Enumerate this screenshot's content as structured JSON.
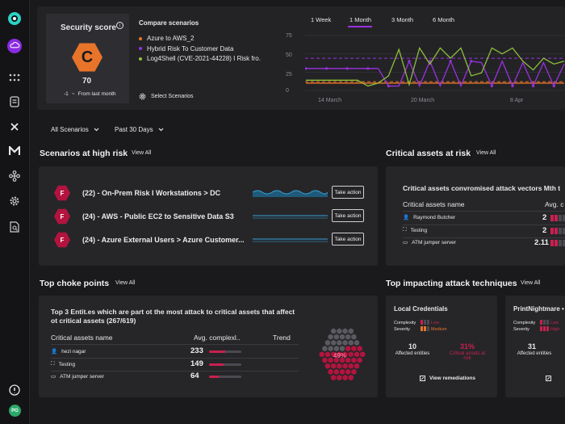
{
  "sidebar": {
    "icons": [
      "app-logo-icon",
      "cloud-icon",
      "grid-icon",
      "report-icon",
      "cross-icon",
      "m-logo-icon",
      "network-icon",
      "gear-icon",
      "doc-search-icon",
      "help-icon"
    ],
    "avatar": "PG"
  },
  "score": {
    "title": "Security score",
    "info": "i",
    "grade": "C",
    "value": "70",
    "delta": "-1",
    "delta_text": "From last month"
  },
  "compare": {
    "title": "Compare scenarios",
    "items": [
      {
        "label": "Azure to AWS_2",
        "color": "#e8742a"
      },
      {
        "label": "Hybrid Risk To Customer Data",
        "color": "#9a30e0"
      },
      {
        "label": "Log4Shell (CVE-2021-44228) I Risk fro.",
        "color": "#8fbf3a"
      }
    ],
    "select_label": "Select Scenarios"
  },
  "timerange": {
    "tabs": [
      "1 Week",
      "1 Month",
      "3 Month",
      "6 Month"
    ],
    "active": "1 Month"
  },
  "chart_data": {
    "type": "line",
    "yticks": [
      "75",
      "50",
      "25",
      "0"
    ],
    "ylim": [
      0,
      75
    ],
    "xticks": [
      "14 March",
      "20 March",
      "8 Apr"
    ],
    "series": [
      {
        "name": "Azure to AWS_2",
        "color": "#e8742a",
        "values": [
          10,
          10,
          10,
          10,
          10,
          10,
          10,
          10,
          10,
          10,
          10,
          10,
          10,
          10,
          10,
          10,
          10,
          10,
          10,
          10,
          10,
          10,
          10,
          10,
          10,
          10
        ]
      },
      {
        "name": "Hybrid Risk To Customer Data",
        "color": "#9a30e0",
        "values": [
          30,
          30,
          30,
          30,
          30,
          30,
          30,
          30,
          6,
          6,
          40,
          6,
          40,
          6,
          40,
          6,
          40,
          38,
          6,
          40,
          6,
          38,
          6,
          38,
          6,
          36
        ]
      },
      {
        "name": "Log4Shell (CVE-2021-44228) I Risk fro.",
        "color": "#8fbf3a",
        "values": [
          14,
          14,
          14,
          14,
          14,
          14,
          6,
          10,
          20,
          56,
          8,
          58,
          36,
          58,
          44,
          58,
          20,
          24,
          58,
          50,
          58,
          40,
          28,
          44,
          36,
          40
        ]
      }
    ],
    "reference_lines": [
      {
        "value": 44,
        "color": "#9a30e0"
      },
      {
        "value": 12,
        "color": "#e8742a"
      }
    ]
  },
  "filters": {
    "scenarios": "All Scenarios",
    "period": "Past 30 Days"
  },
  "high_risk": {
    "title": "Scenarios at high risk",
    "view_all": "View All",
    "rows": [
      {
        "badge": "F",
        "label": "(22) - On-Prem Risk I Workstations > DC",
        "action": "Take action"
      },
      {
        "badge": "F",
        "label": "(24) - AWS - Public EC2 to Sensitive Data S3",
        "action": "Take action"
      },
      {
        "badge": "F",
        "label": "(24) - Azure External Users > Azure Customer...",
        "action": "Take action"
      }
    ]
  },
  "critical_assets": {
    "title": "Critical assets at risk",
    "view_all": "View All",
    "subtitle": "Critical assets convromised attack vectors Mth t",
    "col_name": "Critical assets name",
    "col_avg": "Avg. c",
    "rows": [
      {
        "icon": "user-icon",
        "name": "Raymond Butcher",
        "value": "2",
        "segs": 4
      },
      {
        "icon": "server-icon",
        "name": "Testing",
        "value": "2",
        "segs": 4
      },
      {
        "icon": "laptop-icon",
        "name": "ATM jumper server",
        "value": "2.11",
        "segs": 4
      }
    ]
  },
  "choke": {
    "title": "Top choke points",
    "view_all": "View All",
    "subtitle_line1": "Top 3 Entit.es which are part ot the most attack to critical assets that affect",
    "subtitle_line2": "ot critical assets (267/619)",
    "col_name": "Critical assets name",
    "col_avg": "Avg. complexl..",
    "col_trend": "Trend",
    "rows": [
      {
        "icon": "user-icon",
        "name": "hezi nagar",
        "value": "233",
        "pct": 0.5
      },
      {
        "icon": "server-icon",
        "name": "Testing",
        "value": "149",
        "pct": 0.45
      },
      {
        "icon": "laptop-icon",
        "name": "ATM jumper server",
        "value": "64",
        "pct": 0.3
      }
    ],
    "donut_label": "49%"
  },
  "techniques": {
    "title": "Top impacting attack techniques",
    "view_all": "View All",
    "cards": [
      {
        "name": "Local Credentials",
        "complexity_label": "Complexity",
        "complexity_value": "Low",
        "severity_label": "Severity",
        "severity_value": "Medium",
        "count": "10",
        "count_label": "Affected entities",
        "pct": "31%",
        "pct_label": "Critical assets at risk",
        "remediation": "View remediations"
      },
      {
        "name": "PrintNightmare •",
        "complexity_label": "Complexity",
        "complexity_value": "Low",
        "severity_label": "Severity",
        "severity_value": "High",
        "count": "31",
        "count_label": "Affected entities"
      }
    ]
  }
}
